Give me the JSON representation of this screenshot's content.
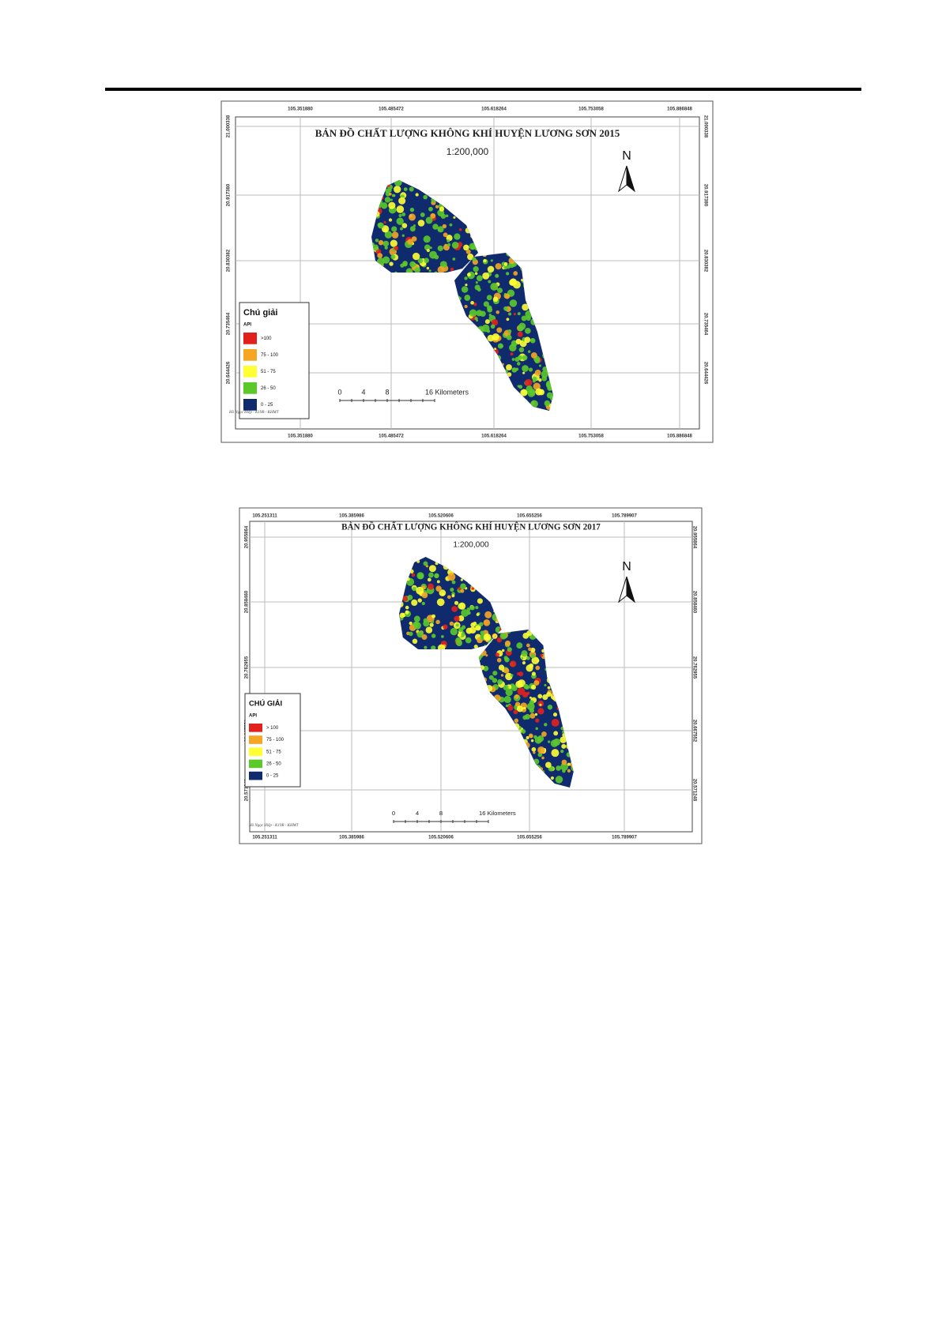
{
  "maps": [
    {
      "title": "BẢN ĐỒ CHẤT LƯỢNG KHÔNG KHÍ HUYỆN LƯƠNG SƠN 2015",
      "scale": "1:200,000",
      "north": "N",
      "x_labels": [
        "105.351880",
        "105.485472",
        "105.618264",
        "105.753058",
        "105.886848"
      ],
      "y_labels": [
        "21.000338",
        "20.917380",
        "20.830382",
        "20.735464",
        "20.644426"
      ],
      "legend": {
        "title": "Chú giải",
        "subtitle": "API",
        "items": [
          {
            "label": ">100",
            "color": "#e3211c"
          },
          {
            "label": "75 - 100",
            "color": "#f5a623"
          },
          {
            "label": "51 - 75",
            "color": "#ffff33"
          },
          {
            "label": "26 - 50",
            "color": "#5cc92b"
          },
          {
            "label": "0 - 25",
            "color": "#102a6e"
          }
        ]
      },
      "scale_bar": [
        "0",
        "4",
        "8",
        "16 Kilometers"
      ],
      "credit": "Hồ Ngọc Hiệp - K19B - KHMT"
    },
    {
      "title": "BẢN ĐỒ CHẤT LƯỢNG KHÔNG KHÍ HUYỆN LƯƠNG SƠN 2017",
      "scale": "1:200,000",
      "north": "N",
      "x_labels": [
        "105.251311",
        "105.385986",
        "105.520606",
        "105.655256",
        "105.789907"
      ],
      "y_labels": [
        "20.955864",
        "20.858460",
        "20.762955",
        "20.667552",
        "20.571248"
      ],
      "legend": {
        "title": "CHÚ GIẢI",
        "subtitle": "API",
        "items": [
          {
            "label": "> 100",
            "color": "#e3211c"
          },
          {
            "label": "75 - 100",
            "color": "#f5a623"
          },
          {
            "label": "51 - 75",
            "color": "#ffff33"
          },
          {
            "label": "26 - 50",
            "color": "#5cc92b"
          },
          {
            "label": "0 - 25",
            "color": "#102a6e"
          }
        ]
      },
      "scale_bar": [
        "0",
        "4",
        "8",
        "16 Kilometers"
      ],
      "credit": "Hồ Ngọc Hiệp - K19B - KHMT"
    }
  ]
}
